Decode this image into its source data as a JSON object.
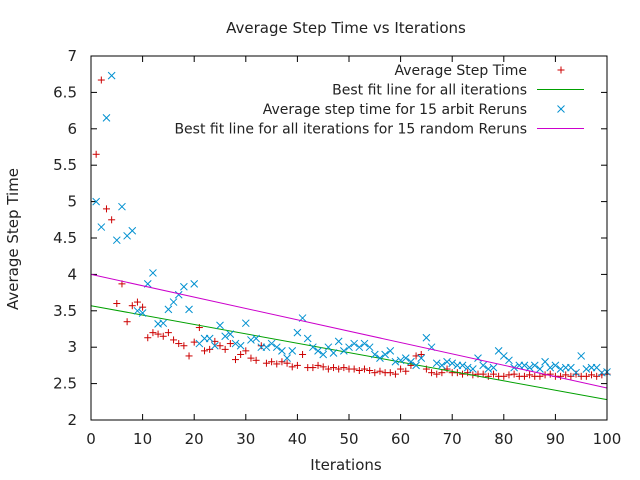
{
  "chart_data": {
    "type": "scatter",
    "title": "Average Step Time vs Iterations",
    "xlabel": "Iterations",
    "ylabel": "Average Step Time",
    "xlim": [
      0,
      100
    ],
    "ylim": [
      2,
      7
    ],
    "xticks": [
      0,
      10,
      20,
      30,
      40,
      50,
      60,
      70,
      80,
      90,
      100
    ],
    "yticks": [
      2,
      2.5,
      3,
      3.5,
      4,
      4.5,
      5,
      5.5,
      6,
      6.5,
      7
    ],
    "legend_position": "top-right",
    "grid": false,
    "series": [
      {
        "name": "Average Step Time",
        "kind": "points",
        "marker": "plus",
        "color": "#cc0000",
        "x": [
          1,
          2,
          3,
          4,
          5,
          6,
          7,
          8,
          9,
          10,
          11,
          12,
          13,
          14,
          15,
          16,
          17,
          18,
          19,
          20,
          21,
          22,
          23,
          24,
          25,
          26,
          27,
          28,
          29,
          30,
          31,
          32,
          33,
          34,
          35,
          36,
          37,
          38,
          39,
          40,
          41,
          42,
          43,
          44,
          45,
          46,
          47,
          48,
          49,
          50,
          51,
          52,
          53,
          54,
          55,
          56,
          57,
          58,
          59,
          60,
          61,
          62,
          63,
          64,
          65,
          66,
          67,
          68,
          69,
          70,
          71,
          72,
          73,
          74,
          75,
          76,
          77,
          78,
          79,
          80,
          81,
          82,
          83,
          84,
          85,
          86,
          87,
          88,
          89,
          90,
          91,
          92,
          93,
          94,
          95,
          96,
          97,
          98,
          99,
          100
        ],
        "y": [
          5.65,
          6.67,
          4.9,
          4.75,
          3.6,
          3.87,
          3.35,
          3.57,
          3.62,
          3.55,
          3.13,
          3.2,
          3.18,
          3.15,
          3.2,
          3.1,
          3.05,
          3.02,
          2.88,
          3.07,
          3.27,
          2.95,
          2.97,
          3.08,
          3.02,
          2.97,
          3.05,
          2.83,
          2.9,
          2.95,
          2.85,
          2.82,
          3.02,
          2.78,
          2.8,
          2.77,
          2.8,
          2.78,
          2.73,
          2.75,
          2.9,
          2.72,
          2.72,
          2.75,
          2.73,
          2.7,
          2.72,
          2.7,
          2.72,
          2.7,
          2.7,
          2.68,
          2.7,
          2.68,
          2.65,
          2.67,
          2.65,
          2.65,
          2.63,
          2.7,
          2.67,
          2.75,
          2.88,
          2.9,
          2.7,
          2.65,
          2.63,
          2.65,
          2.7,
          2.65,
          2.65,
          2.63,
          2.65,
          2.62,
          2.63,
          2.63,
          2.6,
          2.63,
          2.6,
          2.6,
          2.62,
          2.63,
          2.6,
          2.6,
          2.62,
          2.6,
          2.6,
          2.62,
          2.63,
          2.6,
          2.6,
          2.62,
          2.6,
          2.63,
          2.6,
          2.6,
          2.62,
          2.6,
          2.62,
          2.63
        ]
      },
      {
        "name": "Best fit line for all iterations",
        "kind": "line",
        "color": "#00a000",
        "x": [
          0,
          100
        ],
        "y": [
          3.57,
          2.28
        ]
      },
      {
        "name": "Average step time for 15 arbit Reruns",
        "kind": "points",
        "marker": "cross",
        "color": "#0090d0",
        "x": [
          1,
          2,
          3,
          4,
          5,
          6,
          7,
          8,
          9,
          10,
          11,
          12,
          13,
          14,
          15,
          16,
          17,
          18,
          19,
          20,
          21,
          22,
          23,
          24,
          25,
          26,
          27,
          28,
          29,
          30,
          31,
          32,
          33,
          34,
          35,
          36,
          37,
          38,
          39,
          40,
          41,
          42,
          43,
          44,
          45,
          46,
          47,
          48,
          49,
          50,
          51,
          52,
          53,
          54,
          55,
          56,
          57,
          58,
          59,
          60,
          61,
          62,
          63,
          64,
          65,
          66,
          67,
          68,
          69,
          70,
          71,
          72,
          73,
          74,
          75,
          76,
          77,
          78,
          79,
          80,
          81,
          82,
          83,
          84,
          85,
          86,
          87,
          88,
          89,
          90,
          91,
          92,
          93,
          94,
          95,
          96,
          97,
          98,
          99,
          100
        ],
        "y": [
          5.0,
          4.65,
          6.15,
          6.73,
          4.47,
          4.93,
          4.53,
          4.6,
          3.5,
          3.47,
          3.87,
          4.02,
          3.32,
          3.33,
          3.52,
          3.62,
          3.72,
          3.83,
          3.52,
          3.87,
          3.05,
          3.12,
          3.12,
          3.02,
          3.3,
          3.15,
          3.18,
          3.05,
          3.02,
          3.33,
          3.1,
          3.12,
          3.0,
          3.0,
          3.05,
          3.0,
          2.95,
          2.85,
          2.95,
          3.2,
          3.4,
          3.12,
          3.0,
          2.95,
          2.9,
          3.0,
          2.92,
          3.08,
          2.95,
          3.0,
          3.05,
          3.0,
          3.05,
          3.0,
          2.9,
          2.85,
          2.9,
          2.95,
          2.8,
          2.82,
          2.85,
          2.8,
          2.75,
          2.85,
          3.13,
          3.0,
          2.78,
          2.75,
          2.8,
          2.78,
          2.75,
          2.75,
          2.72,
          2.7,
          2.85,
          2.75,
          2.7,
          2.72,
          2.95,
          2.88,
          2.82,
          2.72,
          2.75,
          2.75,
          2.72,
          2.75,
          2.7,
          2.8,
          2.72,
          2.75,
          2.7,
          2.72,
          2.72,
          2.65,
          2.88,
          2.7,
          2.72,
          2.72,
          2.65,
          2.66
        ]
      },
      {
        "name": "Best fit line for all iterations for 15 random Reruns",
        "kind": "line",
        "color": "#cc00cc",
        "x": [
          0,
          100
        ],
        "y": [
          4.0,
          2.44
        ]
      }
    ]
  }
}
